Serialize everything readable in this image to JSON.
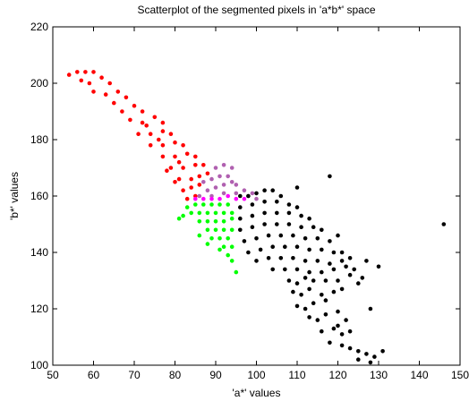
{
  "chart_data": {
    "type": "scatter",
    "title": "Scatterplot of the segmented pixels in 'a*b*' space",
    "xlabel": "'a*' values",
    "ylabel": "'b*' values",
    "xlim": [
      50,
      150
    ],
    "ylim": [
      100,
      220
    ],
    "xticks": [
      50,
      60,
      70,
      80,
      90,
      100,
      110,
      120,
      130,
      140,
      150
    ],
    "yticks": [
      100,
      120,
      140,
      160,
      180,
      200,
      220
    ],
    "grid": false,
    "legend": "none",
    "marker": "filled-dot",
    "series": [
      {
        "color": "#ff0000",
        "points": [
          [
            54,
            203
          ],
          [
            56,
            204
          ],
          [
            58,
            204
          ],
          [
            60,
            204
          ],
          [
            57,
            201
          ],
          [
            59,
            200
          ],
          [
            62,
            202
          ],
          [
            64,
            200
          ],
          [
            60,
            197
          ],
          [
            63,
            196
          ],
          [
            66,
            197
          ],
          [
            68,
            195
          ],
          [
            65,
            193
          ],
          [
            67,
            190
          ],
          [
            70,
            192
          ],
          [
            72,
            190
          ],
          [
            69,
            187
          ],
          [
            72,
            186
          ],
          [
            75,
            188
          ],
          [
            77,
            186
          ],
          [
            71,
            182
          ],
          [
            74,
            182
          ],
          [
            77,
            183
          ],
          [
            79,
            182
          ],
          [
            74,
            178
          ],
          [
            77,
            178
          ],
          [
            80,
            179
          ],
          [
            82,
            178
          ],
          [
            77,
            174
          ],
          [
            80,
            174
          ],
          [
            83,
            175
          ],
          [
            85,
            174
          ],
          [
            79,
            170
          ],
          [
            82,
            170
          ],
          [
            85,
            171
          ],
          [
            87,
            171
          ],
          [
            81,
            166
          ],
          [
            84,
            166
          ],
          [
            86,
            167
          ],
          [
            88,
            168
          ],
          [
            82,
            162
          ],
          [
            84,
            163
          ],
          [
            86,
            164
          ],
          [
            83,
            159
          ],
          [
            85,
            160
          ],
          [
            80,
            165
          ],
          [
            78,
            169
          ],
          [
            73,
            185
          ],
          [
            76,
            180
          ],
          [
            81,
            172
          ]
        ]
      },
      {
        "color": "#b060b0",
        "points": [
          [
            87,
            165
          ],
          [
            89,
            166
          ],
          [
            91,
            167
          ],
          [
            93,
            167
          ],
          [
            94,
            165
          ],
          [
            88,
            162
          ],
          [
            90,
            163
          ],
          [
            92,
            164
          ],
          [
            95,
            164
          ],
          [
            97,
            162
          ],
          [
            99,
            161
          ],
          [
            86,
            160
          ],
          [
            89,
            160
          ],
          [
            92,
            161
          ],
          [
            95,
            161
          ],
          [
            98,
            160
          ],
          [
            100,
            159
          ],
          [
            90,
            170
          ],
          [
            92,
            171
          ],
          [
            94,
            170
          ]
        ]
      },
      {
        "color": "#ff00ff",
        "points": [
          [
            85,
            159
          ],
          [
            87,
            159
          ],
          [
            89,
            159
          ],
          [
            91,
            159
          ],
          [
            93,
            160
          ],
          [
            95,
            159
          ],
          [
            97,
            159
          ]
        ]
      },
      {
        "color": "#00ff00",
        "points": [
          [
            83,
            156
          ],
          [
            85,
            157
          ],
          [
            87,
            157
          ],
          [
            89,
            157
          ],
          [
            91,
            157
          ],
          [
            93,
            157
          ],
          [
            84,
            154
          ],
          [
            86,
            154
          ],
          [
            88,
            154
          ],
          [
            90,
            154
          ],
          [
            92,
            154
          ],
          [
            94,
            154
          ],
          [
            86,
            151
          ],
          [
            88,
            151
          ],
          [
            90,
            151
          ],
          [
            92,
            151
          ],
          [
            94,
            152
          ],
          [
            88,
            148
          ],
          [
            90,
            148
          ],
          [
            92,
            148
          ],
          [
            94,
            148
          ],
          [
            89,
            145
          ],
          [
            91,
            145
          ],
          [
            93,
            145
          ],
          [
            94,
            142
          ],
          [
            92,
            142
          ],
          [
            82,
            153
          ],
          [
            81,
            152
          ],
          [
            86,
            146
          ],
          [
            88,
            143
          ],
          [
            91,
            141
          ],
          [
            93,
            139
          ],
          [
            94,
            137
          ],
          [
            95,
            133
          ]
        ]
      },
      {
        "color": "#000000",
        "points": [
          [
            96,
            160
          ],
          [
            98,
            160
          ],
          [
            100,
            161
          ],
          [
            102,
            162
          ],
          [
            104,
            162
          ],
          [
            106,
            160
          ],
          [
            96,
            156
          ],
          [
            99,
            157
          ],
          [
            102,
            158
          ],
          [
            105,
            158
          ],
          [
            108,
            157
          ],
          [
            110,
            156
          ],
          [
            96,
            152
          ],
          [
            99,
            153
          ],
          [
            102,
            154
          ],
          [
            105,
            154
          ],
          [
            108,
            154
          ],
          [
            111,
            153
          ],
          [
            113,
            152
          ],
          [
            96,
            148
          ],
          [
            99,
            149
          ],
          [
            102,
            150
          ],
          [
            105,
            150
          ],
          [
            108,
            150
          ],
          [
            111,
            149
          ],
          [
            114,
            149
          ],
          [
            116,
            148
          ],
          [
            97,
            144
          ],
          [
            100,
            145
          ],
          [
            103,
            146
          ],
          [
            106,
            146
          ],
          [
            109,
            146
          ],
          [
            112,
            145
          ],
          [
            115,
            145
          ],
          [
            118,
            144
          ],
          [
            120,
            146
          ],
          [
            98,
            140
          ],
          [
            101,
            141
          ],
          [
            104,
            142
          ],
          [
            107,
            142
          ],
          [
            110,
            142
          ],
          [
            113,
            141
          ],
          [
            116,
            141
          ],
          [
            119,
            140
          ],
          [
            121,
            140
          ],
          [
            100,
            137
          ],
          [
            103,
            138
          ],
          [
            106,
            138
          ],
          [
            109,
            138
          ],
          [
            112,
            137
          ],
          [
            115,
            137
          ],
          [
            118,
            136
          ],
          [
            121,
            137
          ],
          [
            123,
            138
          ],
          [
            104,
            134
          ],
          [
            107,
            134
          ],
          [
            110,
            134
          ],
          [
            113,
            133
          ],
          [
            116,
            133
          ],
          [
            119,
            134
          ],
          [
            122,
            135
          ],
          [
            124,
            134
          ],
          [
            126,
            131
          ],
          [
            108,
            130
          ],
          [
            110,
            129
          ],
          [
            112,
            131
          ],
          [
            114,
            130
          ],
          [
            117,
            130
          ],
          [
            120,
            130
          ],
          [
            123,
            132
          ],
          [
            109,
            126
          ],
          [
            111,
            125
          ],
          [
            113,
            127
          ],
          [
            116,
            125
          ],
          [
            119,
            126
          ],
          [
            121,
            127
          ],
          [
            110,
            121
          ],
          [
            112,
            120
          ],
          [
            114,
            122
          ],
          [
            117,
            123
          ],
          [
            113,
            117
          ],
          [
            115,
            116
          ],
          [
            117,
            118
          ],
          [
            120,
            119
          ],
          [
            116,
            112
          ],
          [
            119,
            113
          ],
          [
            121,
            111
          ],
          [
            123,
            112
          ],
          [
            118,
            108
          ],
          [
            121,
            107
          ],
          [
            123,
            106
          ],
          [
            125,
            105
          ],
          [
            127,
            104
          ],
          [
            129,
            103
          ],
          [
            125,
            102
          ],
          [
            128,
            101
          ],
          [
            131,
            105
          ],
          [
            120,
            114
          ],
          [
            122,
            116
          ],
          [
            128,
            120
          ],
          [
            130,
            135
          ],
          [
            127,
            137
          ],
          [
            125,
            129
          ],
          [
            118,
            167
          ],
          [
            110,
            163
          ],
          [
            146,
            150
          ]
        ]
      }
    ]
  }
}
